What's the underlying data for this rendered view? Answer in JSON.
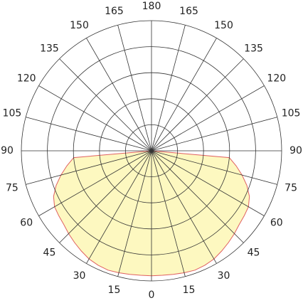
{
  "chart_data": {
    "type": "polar",
    "angleticks": [
      0,
      15,
      30,
      45,
      60,
      75,
      90,
      105,
      120,
      135,
      150,
      165,
      180
    ],
    "rlim": [
      0,
      5
    ],
    "rgrid": [
      1,
      2,
      3,
      4,
      5
    ],
    "x": [
      -90,
      -85,
      -80,
      -75,
      -70,
      -65,
      -60,
      -55,
      -50,
      -45,
      -40,
      -35,
      -30,
      -25,
      -20,
      -15,
      -10,
      -5,
      0,
      5,
      10,
      15,
      20,
      25,
      30,
      35,
      40,
      45,
      50,
      55,
      60,
      65,
      70,
      75,
      80,
      85,
      90
    ],
    "values": [
      0,
      3.0,
      3.3,
      3.6,
      3.9,
      4.15,
      4.3,
      4.35,
      4.4,
      4.5,
      4.6,
      4.7,
      4.8,
      4.85,
      4.88,
      4.85,
      4.82,
      4.8,
      4.8,
      4.8,
      4.82,
      4.85,
      4.88,
      4.85,
      4.8,
      4.7,
      4.6,
      4.5,
      4.4,
      4.35,
      4.3,
      4.15,
      3.9,
      3.6,
      3.3,
      3.0,
      0
    ],
    "fill": "#fdf8c0",
    "color": "#e06060",
    "grid_color": "#333333"
  }
}
